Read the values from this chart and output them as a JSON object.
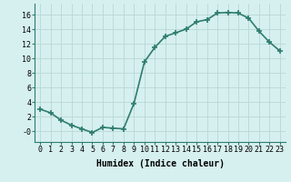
{
  "x": [
    0,
    1,
    2,
    3,
    4,
    5,
    6,
    7,
    8,
    9,
    10,
    11,
    12,
    13,
    14,
    15,
    16,
    17,
    18,
    19,
    20,
    21,
    22,
    23
  ],
  "y": [
    3.0,
    2.5,
    1.5,
    0.8,
    0.3,
    -0.2,
    0.5,
    0.4,
    0.3,
    3.8,
    9.5,
    11.5,
    13.0,
    13.5,
    14.0,
    15.0,
    15.3,
    16.2,
    16.3,
    16.2,
    15.5,
    13.7,
    12.2,
    11.0
  ],
  "line_color": "#2e7d6e",
  "marker": "+",
  "marker_size": 4,
  "bg_color": "#d6f0ef",
  "grid_color": "#b8d8d4",
  "xlabel": "Humidex (Indice chaleur)",
  "ylim": [
    -1.5,
    17.5
  ],
  "xlim": [
    -0.5,
    23.5
  ],
  "yticks": [
    0,
    2,
    4,
    6,
    8,
    10,
    12,
    14,
    16
  ],
  "ytick_labels": [
    "-0",
    "2",
    "4",
    "6",
    "8",
    "10",
    "12",
    "14",
    "16"
  ],
  "xticks": [
    0,
    1,
    2,
    3,
    4,
    5,
    6,
    7,
    8,
    9,
    10,
    11,
    12,
    13,
    14,
    15,
    16,
    17,
    18,
    19,
    20,
    21,
    22,
    23
  ],
  "xlabel_fontsize": 7,
  "tick_fontsize": 6,
  "line_width": 1.2,
  "marker_color": "#2e7d6e"
}
